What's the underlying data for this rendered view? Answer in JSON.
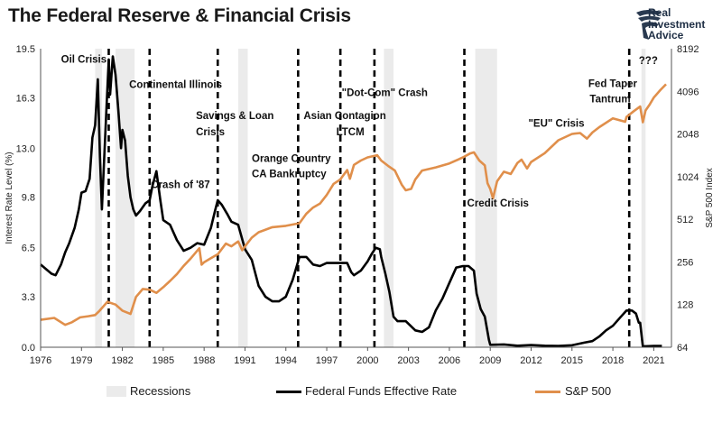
{
  "chart_data": {
    "type": "line",
    "title": "The Federal Reserve & Financial Crisis",
    "brand": [
      "Real",
      "Investment",
      "Advice"
    ],
    "xlim": [
      1976,
      2022.3
    ],
    "x_ticks": [
      "1976",
      "1979",
      "1982",
      "1985",
      "1988",
      "1991",
      "1994",
      "1997",
      "2000",
      "2003",
      "2006",
      "2009",
      "2012",
      "2015",
      "2018",
      "2021"
    ],
    "ylabel_left": "Interest Rate Level (%)",
    "ylim_left": [
      0,
      19.5
    ],
    "y_ticks_left": [
      "0.0",
      "3.3",
      "6.5",
      "9.8",
      "13.0",
      "16.3",
      "19.5"
    ],
    "ylabel_right": "S&P 500 Index",
    "ylim_right_log2": [
      64,
      8192
    ],
    "y_ticks_right": [
      "64",
      "128",
      "256",
      "512",
      "1024",
      "2048",
      "4096",
      "8192"
    ],
    "recessions": [
      [
        1980.0,
        1980.5
      ],
      [
        1981.5,
        1982.9
      ],
      [
        1990.5,
        1991.2
      ],
      [
        2001.2,
        2001.9
      ],
      [
        2007.9,
        2009.5
      ],
      [
        2020.1,
        2020.4
      ]
    ],
    "crisis_lines": [
      1981.0,
      1984.0,
      1989.0,
      1994.9,
      1998.0,
      2000.5,
      2007.1,
      2019.2
    ],
    "annotations": [
      {
        "text": "Oil Crisis",
        "x": 1977.5,
        "y": 18.6
      },
      {
        "text": "Continental Illinois",
        "x": 1982.5,
        "y": 16.95
      },
      {
        "text": "Savings & Loan",
        "x": 1987.4,
        "y": 14.9
      },
      {
        "text": "Crisis",
        "x": 1987.4,
        "y": 13.85
      },
      {
        "text": "Orange Country",
        "x": 1991.5,
        "y": 12.1
      },
      {
        "text": "CA Bankruptcy",
        "x": 1991.5,
        "y": 11.1
      },
      {
        "text": "Crash of '87",
        "x": 1984.1,
        "y": 10.4
      },
      {
        "text": "Asian Contagion",
        "x": 1995.3,
        "y": 14.9
      },
      {
        "text": "LTCM",
        "x": 1997.7,
        "y": 13.85
      },
      {
        "text": "\"Dot-Com\" Crash",
        "x": 1998.1,
        "y": 16.4
      },
      {
        "text": "\"EU\" Crisis",
        "x": 2011.8,
        "y": 14.4
      },
      {
        "text": "Credit Crisis",
        "x": 2007.3,
        "y": 9.2
      },
      {
        "text": "Fed Taper",
        "x": 2016.2,
        "y": 17.0
      },
      {
        "text": "Tantrum",
        "x": 2016.3,
        "y": 16.0
      },
      {
        "text": "???",
        "x": 2019.9,
        "y": 18.5
      }
    ],
    "series": [
      {
        "name": "Federal Funds Effective Rate",
        "axis": "left",
        "color": "#000000",
        "x": [
          1976.0,
          1976.4,
          1976.8,
          1977.1,
          1977.5,
          1977.8,
          1978.1,
          1978.5,
          1978.8,
          1979.0,
          1979.3,
          1979.6,
          1979.8,
          1980.0,
          1980.2,
          1980.35,
          1980.5,
          1980.65,
          1980.85,
          1981.0,
          1981.1,
          1981.3,
          1981.5,
          1981.7,
          1981.9,
          1982.0,
          1982.2,
          1982.4,
          1982.6,
          1982.8,
          1983.0,
          1983.3,
          1983.7,
          1984.0,
          1984.2,
          1984.5,
          1984.8,
          1985.0,
          1985.5,
          1986.0,
          1986.5,
          1987.0,
          1987.5,
          1988.0,
          1988.5,
          1988.8,
          1989.0,
          1989.3,
          1989.7,
          1990.0,
          1990.5,
          1991.0,
          1991.5,
          1992.0,
          1992.5,
          1993.0,
          1993.5,
          1994.0,
          1994.5,
          1995.0,
          1995.5,
          1996.0,
          1996.5,
          1997.0,
          1997.5,
          1998.0,
          1998.5,
          1998.8,
          1999.0,
          1999.5,
          2000.0,
          2000.3,
          2000.6,
          2000.9,
          2001.0,
          2001.3,
          2001.6,
          2001.9,
          2002.2,
          2002.8,
          2003.5,
          2004.0,
          2004.5,
          2005.0,
          2005.5,
          2006.0,
          2006.5,
          2007.0,
          2007.4,
          2007.8,
          2008.0,
          2008.3,
          2008.6,
          2008.9,
          2009.0,
          2010.0,
          2011.0,
          2012.0,
          2013.0,
          2014.0,
          2015.0,
          2015.9,
          2016.5,
          2017.0,
          2017.5,
          2018.0,
          2018.5,
          2019.0,
          2019.4,
          2019.7,
          2019.9,
          2020.0,
          2020.2,
          2021.0,
          2021.6
        ],
        "values": [
          5.4,
          5.1,
          4.8,
          4.7,
          5.4,
          6.2,
          6.8,
          7.8,
          9.0,
          10.1,
          10.2,
          11.0,
          13.7,
          14.5,
          17.5,
          12.5,
          9.0,
          12.0,
          15.9,
          18.8,
          16.5,
          19.0,
          17.8,
          15.5,
          13.0,
          14.2,
          13.5,
          11.2,
          9.8,
          9.0,
          8.6,
          8.9,
          9.4,
          9.6,
          10.5,
          11.5,
          9.5,
          8.3,
          8.0,
          7.0,
          6.3,
          6.5,
          6.8,
          6.7,
          7.8,
          8.9,
          9.6,
          9.3,
          8.7,
          8.2,
          8.0,
          6.4,
          5.7,
          4.0,
          3.3,
          3.0,
          3.0,
          3.3,
          4.4,
          5.9,
          5.9,
          5.4,
          5.3,
          5.5,
          5.5,
          5.5,
          5.5,
          4.9,
          4.7,
          5.0,
          5.6,
          6.1,
          6.5,
          6.4,
          5.9,
          4.8,
          3.6,
          2.0,
          1.7,
          1.7,
          1.1,
          1.0,
          1.3,
          2.4,
          3.2,
          4.2,
          5.2,
          5.3,
          5.3,
          5.0,
          3.5,
          2.5,
          2.0,
          0.5,
          0.16,
          0.18,
          0.1,
          0.14,
          0.1,
          0.09,
          0.13,
          0.3,
          0.4,
          0.7,
          1.1,
          1.4,
          1.9,
          2.4,
          2.4,
          2.2,
          1.6,
          1.6,
          0.06,
          0.08,
          0.08
        ]
      },
      {
        "name": "S&P 500",
        "axis": "right",
        "color": "#e08f4b",
        "x": [
          1976.0,
          1977.0,
          1977.8,
          1978.3,
          1978.9,
          1979.5,
          1980.0,
          1980.3,
          1980.9,
          1981.5,
          1982.0,
          1982.6,
          1983.0,
          1983.5,
          1984.0,
          1984.5,
          1985.0,
          1985.5,
          1986.0,
          1986.5,
          1987.0,
          1987.65,
          1987.82,
          1988.0,
          1988.5,
          1989.0,
          1989.6,
          1990.0,
          1990.5,
          1990.8,
          1991.0,
          1991.5,
          1992.0,
          1993.0,
          1994.0,
          1995.0,
          1995.5,
          1996.0,
          1996.5,
          1997.0,
          1997.5,
          1998.0,
          1998.5,
          1998.7,
          1999.0,
          1999.5,
          2000.0,
          2000.7,
          2001.0,
          2001.5,
          2002.0,
          2002.5,
          2002.8,
          2003.2,
          2003.5,
          2004.0,
          2005.0,
          2006.0,
          2007.0,
          2007.5,
          2007.8,
          2008.2,
          2008.6,
          2008.8,
          2009.0,
          2009.2,
          2009.5,
          2010.0,
          2010.5,
          2011.0,
          2011.3,
          2011.7,
          2012.0,
          2013.0,
          2014.0,
          2015.0,
          2015.6,
          2016.1,
          2016.5,
          2017.0,
          2018.0,
          2018.9,
          2019.0,
          2019.5,
          2020.0,
          2020.2,
          2020.4,
          2020.7,
          2021.0,
          2021.5,
          2021.9
        ],
        "values": [
          100,
          103,
          92,
          96,
          104,
          106,
          108,
          115,
          134,
          128,
          116,
          110,
          145,
          165,
          163,
          155,
          170,
          188,
          210,
          240,
          270,
          320,
          245,
          255,
          272,
          290,
          345,
          330,
          357,
          310,
          330,
          380,
          415,
          450,
          460,
          480,
          560,
          620,
          660,
          760,
          910,
          980,
          1140,
          990,
          1240,
          1330,
          1400,
          1450,
          1330,
          1220,
          1130,
          900,
          820,
          840,
          980,
          1130,
          1190,
          1270,
          1400,
          1490,
          1520,
          1330,
          1230,
          920,
          840,
          720,
          950,
          1110,
          1070,
          1280,
          1350,
          1170,
          1300,
          1500,
          1850,
          2050,
          2080,
          1900,
          2100,
          2290,
          2640,
          2500,
          2700,
          2950,
          3200,
          2480,
          3000,
          3300,
          3700,
          4200,
          4600
        ]
      }
    ],
    "legend": [
      "Recessions",
      "Federal Funds Effective Rate",
      "S&P 500"
    ],
    "recession_color": "#ebebeb",
    "grid": false
  }
}
